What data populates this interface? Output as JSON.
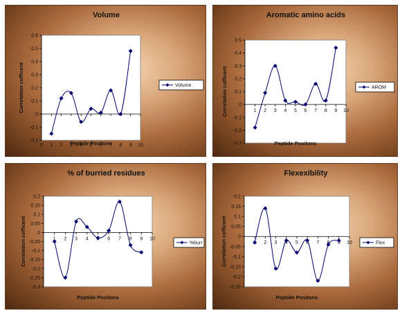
{
  "colors": {
    "line": "#00006e",
    "marker": "#00006e",
    "plot_bg": "#ffffff"
  },
  "chart_data": [
    {
      "type": "line",
      "title": "Volume",
      "xlabel": "Peptide Positons",
      "ylabel": "Correlation cofficent",
      "xlim": [
        0,
        10
      ],
      "ylim": [
        -0.2,
        0.6
      ],
      "xticks": [
        "0",
        "1",
        "2",
        "3",
        "4",
        "5",
        "6",
        "7",
        "8",
        "9",
        "10"
      ],
      "yticks": [
        "-0.2",
        "-0.1",
        "0",
        "0.1",
        "0.2",
        "0.3",
        "0.4",
        "0.5",
        "0.6"
      ],
      "legend_position": "right",
      "series": [
        {
          "name": "Volume",
          "x": [
            1,
            2,
            3,
            4,
            5,
            6,
            7,
            8,
            9
          ],
          "y": [
            -0.15,
            0.12,
            0.16,
            -0.06,
            0.04,
            0.01,
            0.18,
            0.0,
            0.48
          ]
        }
      ]
    },
    {
      "type": "line",
      "title": "Aromatic amino acids",
      "xlabel": "Peptide Positons",
      "ylabel": "Correlation cofficent",
      "xlim": [
        0,
        10
      ],
      "ylim": [
        -0.3,
        0.5
      ],
      "xticks": [
        "1",
        "2",
        "3",
        "4",
        "5",
        "6",
        "7",
        "8",
        "9",
        "10"
      ],
      "yticks": [
        "-0.3",
        "-0.2",
        "-0.1",
        "0",
        "0.1",
        "0.2",
        "0.3",
        "0.4",
        "0.5"
      ],
      "legend_position": "right",
      "series": [
        {
          "name": "AROM",
          "x": [
            1,
            2,
            3,
            4,
            5,
            6,
            7,
            8,
            9
          ],
          "y": [
            -0.18,
            0.09,
            0.3,
            0.03,
            0.02,
            0.0,
            0.16,
            0.03,
            0.44
          ]
        }
      ]
    },
    {
      "type": "line",
      "title": "% of burried residues",
      "xlabel": "Peptide Positons",
      "ylabel": "Correlation cofficent",
      "xlim": [
        0,
        10
      ],
      "ylim": [
        -0.3,
        0.2
      ],
      "xticks": [
        "1",
        "2",
        "3",
        "4",
        "5",
        "6",
        "7",
        "8",
        "9",
        "10"
      ],
      "yticks": [
        "-0.3",
        "-0.25",
        "-0.2",
        "-0.15",
        "-0.1",
        "-0.05",
        "0",
        "0.05",
        "0.1",
        "0.15",
        "0.2"
      ],
      "legend_position": "right",
      "series": [
        {
          "name": "%burr",
          "x": [
            1,
            2,
            3,
            4,
            5,
            6,
            7,
            8,
            9
          ],
          "y": [
            -0.05,
            -0.25,
            0.06,
            0.03,
            -0.03,
            0.01,
            0.17,
            -0.07,
            -0.11
          ]
        }
      ]
    },
    {
      "type": "line",
      "title": "Flexexibility",
      "xlabel": "Peptide Positons",
      "ylabel": "Correlation cofficent",
      "xlim": [
        0,
        10
      ],
      "ylim": [
        -0.25,
        0.2
      ],
      "xticks": [
        "1",
        "2",
        "3",
        "4",
        "5",
        "6",
        "7",
        "8",
        "9",
        "10"
      ],
      "yticks": [
        "-0.25",
        "-0.2",
        "-0.15",
        "-0.1",
        "-0.05",
        "0",
        "0.05",
        "0.1",
        "0.15",
        "0.2"
      ],
      "legend_position": "right",
      "series": [
        {
          "name": "Flex",
          "x": [
            1,
            2,
            3,
            4,
            5,
            6,
            7,
            8,
            9
          ],
          "y": [
            -0.03,
            0.14,
            -0.16,
            -0.02,
            -0.08,
            -0.02,
            -0.22,
            -0.04,
            -0.02
          ]
        }
      ]
    }
  ]
}
